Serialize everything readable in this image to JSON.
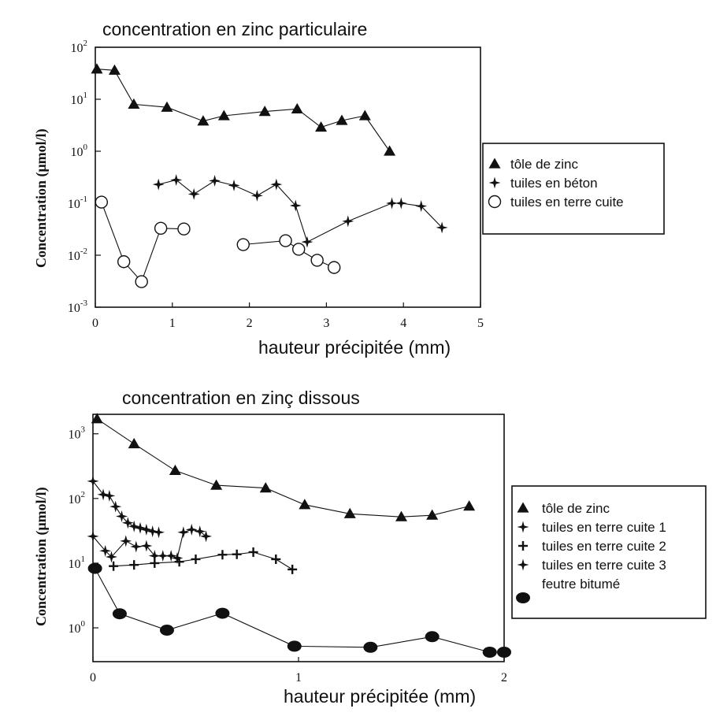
{
  "chart_data": [
    {
      "type": "line",
      "title": "concentration en zinc particulaire",
      "xlabel": "hauteur précipitée (mm)",
      "ylabel": "Concentration (μmol/l)",
      "xlim": [
        0,
        5
      ],
      "ylim": [
        0.001,
        100
      ],
      "yscale": "log",
      "xticks": [
        "0",
        "1",
        "2",
        "3",
        "4",
        "5"
      ],
      "yticks": [
        {
          "base": "10",
          "exp": "2"
        },
        {
          "base": "10",
          "exp": "1"
        },
        {
          "base": "10",
          "exp": "0"
        },
        {
          "base": "10",
          "exp": "-1"
        },
        {
          "base": "10",
          "exp": "-2"
        },
        {
          "base": "10",
          "exp": "-3"
        }
      ],
      "legend_position": "right",
      "series": [
        {
          "name": "tôle de zinc",
          "marker": "triangle",
          "segments": [
            [
              [
                0.02,
                38
              ],
              [
                0.25,
                36
              ],
              [
                0.5,
                8
              ],
              [
                0.93,
                7
              ],
              [
                1.4,
                3.8
              ],
              [
                1.67,
                4.8
              ],
              [
                2.2,
                5.8
              ],
              [
                2.62,
                6.5
              ],
              [
                2.93,
                2.9
              ],
              [
                3.2,
                3.9
              ],
              [
                3.5,
                4.8
              ],
              [
                3.82,
                1.0
              ]
            ]
          ]
        },
        {
          "name": "tuiles en béton",
          "marker": "star4",
          "segments": [
            [
              [
                0.82,
                0.23
              ],
              [
                1.05,
                0.28
              ],
              [
                1.28,
                0.15
              ],
              [
                1.55,
                0.27
              ],
              [
                1.8,
                0.22
              ],
              [
                2.1,
                0.14
              ],
              [
                2.35,
                0.23
              ],
              [
                2.6,
                0.09
              ],
              [
                2.75,
                0.018
              ],
              [
                3.28,
                0.045
              ],
              [
                3.85,
                0.1
              ],
              [
                3.97,
                0.1
              ],
              [
                4.23,
                0.088
              ],
              [
                4.5,
                0.034
              ]
            ]
          ]
        },
        {
          "name": "tuiles en terre cuite",
          "marker": "circle-open",
          "segments": [
            [
              [
                0.08,
                0.105
              ],
              [
                0.37,
                0.0075
              ],
              [
                0.6,
                0.0031
              ],
              [
                0.85,
                0.033
              ],
              [
                1.15,
                0.032
              ]
            ],
            [
              [
                1.92,
                0.016
              ],
              [
                2.47,
                0.019
              ],
              [
                2.64,
                0.013
              ],
              [
                2.88,
                0.008
              ],
              [
                3.1,
                0.0058
              ]
            ]
          ]
        }
      ]
    },
    {
      "type": "line",
      "title": "concentration en zinç dissous",
      "xlabel": "hauteur précipitée (mm)",
      "ylabel": "Concentration (μmol/l)",
      "xlim": [
        0,
        2
      ],
      "ylim": [
        0.3,
        2000
      ],
      "yscale": "log",
      "xticks": [
        "0",
        "1",
        "2"
      ],
      "yticks": [
        {
          "base": "10",
          "exp": "3"
        },
        {
          "base": "10",
          "exp": "2"
        },
        {
          "base": "10",
          "exp": "1"
        },
        {
          "base": "10",
          "exp": "0"
        }
      ],
      "legend_position": "right",
      "series": [
        {
          "name": "tôle de zinc",
          "marker": "triangle",
          "segments": [
            [
              [
                0.02,
                1700
              ],
              [
                0.2,
                700
              ],
              [
                0.4,
                270
              ],
              [
                0.6,
                160
              ],
              [
                0.84,
                145
              ],
              [
                1.03,
                80
              ],
              [
                1.25,
                58
              ],
              [
                1.5,
                52
              ],
              [
                1.65,
                55
              ],
              [
                1.83,
                76
              ]
            ]
          ]
        },
        {
          "name": "tuiles en terre cuite 1",
          "marker": "star4",
          "segments": [
            [
              [
                0.0,
                185
              ],
              [
                0.05,
                115
              ],
              [
                0.08,
                110
              ],
              [
                0.11,
                75
              ],
              [
                0.14,
                53
              ],
              [
                0.17,
                42
              ],
              [
                0.2,
                37
              ],
              [
                0.23,
                35
              ],
              [
                0.26,
                33
              ],
              [
                0.29,
                31
              ],
              [
                0.32,
                30
              ]
            ]
          ]
        },
        {
          "name": "tuiles en terre cuite 2",
          "marker": "plus",
          "segments": [
            [
              [
                0.1,
                9
              ],
              [
                0.2,
                9.4
              ],
              [
                0.3,
                10
              ],
              [
                0.42,
                10.5
              ],
              [
                0.5,
                11.5
              ],
              [
                0.63,
                13.5
              ],
              [
                0.7,
                13.7
              ],
              [
                0.78,
                14.8
              ],
              [
                0.89,
                11.5
              ],
              [
                0.97,
                8
              ]
            ]
          ]
        },
        {
          "name": "tuiles en terre cuite 3",
          "marker": "star4",
          "segments": [
            [
              [
                0.0,
                26
              ],
              [
                0.06,
                15.5
              ],
              [
                0.09,
                12.5
              ],
              [
                0.16,
                22
              ],
              [
                0.21,
                18
              ],
              [
                0.26,
                18.5
              ],
              [
                0.3,
                13
              ],
              [
                0.34,
                13
              ],
              [
                0.38,
                13
              ],
              [
                0.41,
                12
              ],
              [
                0.44,
                30
              ],
              [
                0.48,
                33
              ],
              [
                0.52,
                31
              ],
              [
                0.55,
                26
              ]
            ]
          ]
        },
        {
          "name": "feutre bitumé",
          "marker": "circle-filled",
          "segments": [
            [
              [
                0.01,
                8.3
              ],
              [
                0.13,
                1.65
              ],
              [
                0.36,
                0.92
              ],
              [
                0.63,
                1.68
              ],
              [
                0.98,
                0.52
              ],
              [
                1.35,
                0.5
              ],
              [
                1.65,
                0.73
              ],
              [
                1.93,
                0.42
              ],
              [
                2.0,
                0.42
              ]
            ]
          ]
        }
      ]
    }
  ]
}
